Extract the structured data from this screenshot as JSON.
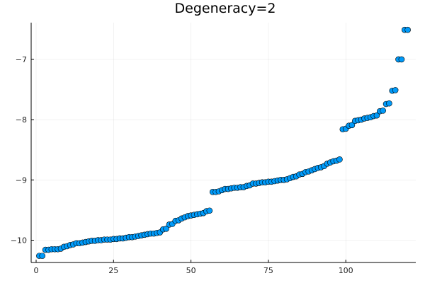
{
  "chart_data": {
    "type": "scatter",
    "title": "Degeneracy=2",
    "xlabel": "",
    "ylabel": "",
    "xlim": [
      -1.6,
      122.6
    ],
    "ylim": [
      -10.37,
      -6.39
    ],
    "xticks": [
      0,
      25,
      50,
      75,
      100
    ],
    "yticks": [
      -10,
      -9,
      -8,
      -7
    ],
    "ytick_labels": [
      "−10",
      "−9",
      "−8",
      "−7"
    ],
    "grid": true,
    "legend": "none",
    "marker_color": "#009af9",
    "marker_edge": "#000000",
    "series": [
      {
        "x": [
          1,
          2,
          3,
          4,
          5,
          6,
          7,
          8,
          9,
          10,
          11,
          12,
          13,
          14,
          15,
          16,
          17,
          18,
          19,
          20,
          21,
          22,
          23,
          24,
          25,
          26,
          27,
          28,
          29,
          30,
          31,
          32,
          33,
          34,
          35,
          36,
          37,
          38,
          39,
          40,
          41,
          42,
          43,
          44,
          45,
          46,
          47,
          48,
          49,
          50,
          51,
          52,
          53,
          54,
          55,
          56,
          57,
          58,
          59,
          60,
          61,
          62,
          63,
          64,
          65,
          66,
          67,
          68,
          69,
          70,
          71,
          72,
          73,
          74,
          75,
          76,
          77,
          78,
          79,
          80,
          81,
          82,
          83,
          84,
          85,
          86,
          87,
          88,
          89,
          90,
          91,
          92,
          93,
          94,
          95,
          96,
          97,
          98,
          99,
          100,
          101,
          102,
          103,
          104,
          105,
          106,
          107,
          108,
          109,
          110,
          111,
          112,
          113,
          114,
          115,
          116,
          117,
          118,
          119,
          120
        ],
        "y": [
          -10.26,
          -10.26,
          -10.16,
          -10.16,
          -10.15,
          -10.15,
          -10.15,
          -10.14,
          -10.11,
          -10.1,
          -10.08,
          -10.07,
          -10.05,
          -10.05,
          -10.04,
          -10.03,
          -10.02,
          -10.01,
          -10.01,
          -10.0,
          -10.0,
          -9.99,
          -9.99,
          -9.99,
          -9.98,
          -9.98,
          -9.97,
          -9.97,
          -9.96,
          -9.95,
          -9.95,
          -9.94,
          -9.93,
          -9.92,
          -9.91,
          -9.9,
          -9.89,
          -9.89,
          -9.88,
          -9.87,
          -9.82,
          -9.81,
          -9.74,
          -9.73,
          -9.68,
          -9.67,
          -9.64,
          -9.62,
          -9.6,
          -9.59,
          -9.58,
          -9.57,
          -9.56,
          -9.55,
          -9.52,
          -9.51,
          -9.2,
          -9.2,
          -9.19,
          -9.17,
          -9.15,
          -9.15,
          -9.14,
          -9.13,
          -9.13,
          -9.12,
          -9.12,
          -9.1,
          -9.09,
          -9.06,
          -9.06,
          -9.05,
          -9.04,
          -9.04,
          -9.03,
          -9.03,
          -9.02,
          -9.01,
          -9.0,
          -9.0,
          -8.99,
          -8.97,
          -8.95,
          -8.94,
          -8.91,
          -8.9,
          -8.87,
          -8.86,
          -8.84,
          -8.82,
          -8.8,
          -8.79,
          -8.77,
          -8.73,
          -8.71,
          -8.69,
          -8.68,
          -8.66,
          -8.16,
          -8.15,
          -8.1,
          -8.09,
          -8.02,
          -8.01,
          -8.0,
          -7.98,
          -7.97,
          -7.96,
          -7.94,
          -7.93,
          -7.86,
          -7.85,
          -7.74,
          -7.73,
          -7.52,
          -7.51,
          -7.0,
          -7.0,
          -6.51,
          -6.51
        ]
      }
    ]
  }
}
